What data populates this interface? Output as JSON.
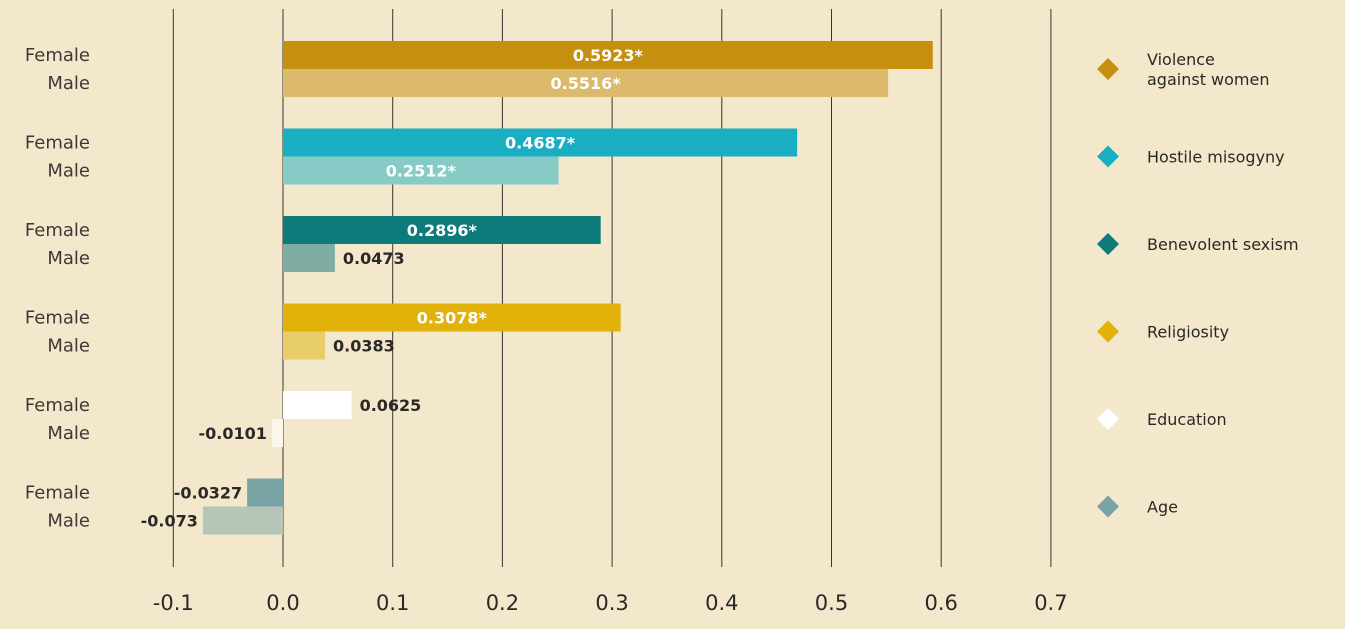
{
  "chart_data": {
    "type": "bar",
    "orientation": "horizontal",
    "title": "",
    "xlabel": "",
    "ylabel": "",
    "xlim": [
      -0.1,
      0.7
    ],
    "x_ticks": [
      "-0.1",
      "0.0",
      "0.1",
      "0.2",
      "0.3",
      "0.4",
      "0.5",
      "0.6",
      "0.7"
    ],
    "grid": "vertical",
    "legend_position": "right",
    "groups": [
      {
        "name": "Violence against women",
        "name_lines": [
          "Violence",
          "against women"
        ],
        "color": "#c58f0f",
        "bars": [
          {
            "sex": "Female",
            "value": 0.5923,
            "label": "0.5923*",
            "color": "#c58f0f",
            "label_inside": true
          },
          {
            "sex": "Male",
            "value": 0.5516,
            "label": "0.5516*",
            "color": "#dcba6c",
            "label_inside": true
          }
        ]
      },
      {
        "name": "Hostile misogyny",
        "name_lines": [
          "Hostile misogyny"
        ],
        "color": "#1aaec2",
        "bars": [
          {
            "sex": "Female",
            "value": 0.4687,
            "label": "0.4687*",
            "color": "#1aaec2",
            "label_inside": true
          },
          {
            "sex": "Male",
            "value": 0.2512,
            "label": "0.2512*",
            "color": "#87cbc7",
            "label_inside": true
          }
        ]
      },
      {
        "name": "Benevolent sexism",
        "name_lines": [
          "Benevolent sexism"
        ],
        "color": "#0e7b7b",
        "bars": [
          {
            "sex": "Female",
            "value": 0.2896,
            "label": "0.2896*",
            "color": "#0e7b7b",
            "label_inside": true
          },
          {
            "sex": "Male",
            "value": 0.0473,
            "label": "0.0473",
            "color": "#80ada3",
            "label_inside": false
          }
        ]
      },
      {
        "name": "Religiosity",
        "name_lines": [
          "Religiosity"
        ],
        "color": "#e0b20a",
        "bars": [
          {
            "sex": "Female",
            "value": 0.3078,
            "label": "0.3078*",
            "color": "#e0b20a",
            "label_inside": true
          },
          {
            "sex": "Male",
            "value": 0.0383,
            "label": "0.0383",
            "color": "#e9cd6a",
            "label_inside": false
          }
        ]
      },
      {
        "name": "Education",
        "name_lines": [
          "Education"
        ],
        "color": "#ffffff",
        "bars": [
          {
            "sex": "Female",
            "value": 0.0625,
            "label": "0.0625",
            "color": "#ffffff",
            "label_inside": false
          },
          {
            "sex": "Male",
            "value": -0.0101,
            "label": "-0.0101",
            "color": "#faf6ec",
            "label_inside": false
          }
        ]
      },
      {
        "name": "Age",
        "name_lines": [
          "Age"
        ],
        "color": "#79a3a5",
        "bars": [
          {
            "sex": "Female",
            "value": -0.0327,
            "label": "-0.0327",
            "color": "#79a3a5",
            "label_inside": false
          },
          {
            "sex": "Male",
            "value": -0.073,
            "label": "-0.073",
            "color": "#b5c6b9",
            "label_inside": false
          }
        ]
      }
    ]
  },
  "colors": {
    "background": "#f3e7cc",
    "gridline": "#3a3530",
    "inside_label_text": "#ffffff",
    "outside_label_text": "#2b2926"
  }
}
